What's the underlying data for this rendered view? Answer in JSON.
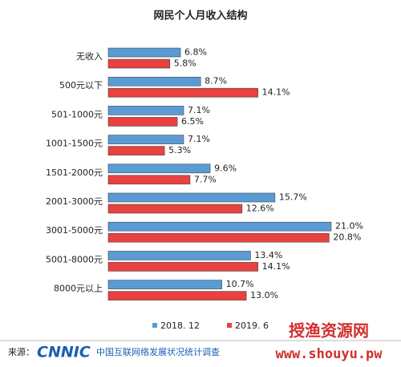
{
  "chart_data": {
    "type": "bar",
    "orientation": "horizontal",
    "title": "网民个人月收入结构",
    "categories": [
      "无收入",
      "500元以下",
      "501-1000元",
      "1001-1500元",
      "1501-2000元",
      "2001-3000元",
      "3001-5000元",
      "5001-8000元",
      "8000元以上"
    ],
    "series": [
      {
        "name": "2018. 12",
        "color": "#5b9bd5",
        "values": [
          6.8,
          8.7,
          7.1,
          7.1,
          9.6,
          15.7,
          21.0,
          13.4,
          10.7
        ],
        "value_labels": [
          "6.8%",
          "8.7%",
          "7.1%",
          "7.1%",
          "9.6%",
          "15.7%",
          "21.0%",
          "13.4%",
          "10.7%"
        ]
      },
      {
        "name": "2019. 6",
        "color": "#e8413f",
        "values": [
          5.8,
          14.1,
          6.5,
          5.3,
          7.7,
          12.6,
          20.8,
          14.1,
          13.0
        ],
        "value_labels": [
          "5.8%",
          "14.1%",
          "6.5%",
          "5.3%",
          "7.7%",
          "12.6%",
          "20.8%",
          "14.1%",
          "13.0%"
        ]
      }
    ],
    "legend": "bottom"
  },
  "footer": {
    "source_label": "来源：",
    "logo": "CNNIC",
    "source": "中国互联网络发展状况统计调查"
  },
  "watermark": {
    "name": "授渔资源网",
    "url": "www.shouyu.pw"
  }
}
